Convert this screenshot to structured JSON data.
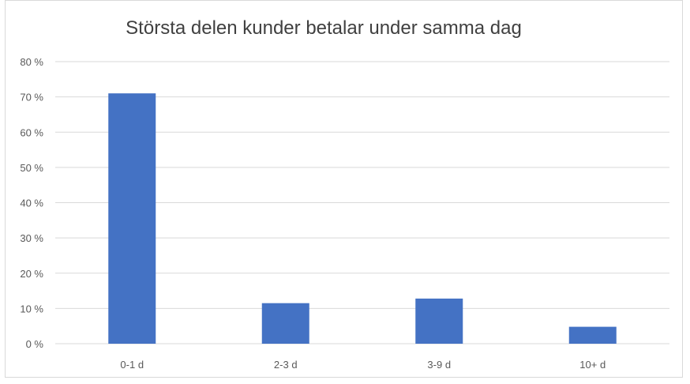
{
  "chart_data": {
    "type": "bar",
    "title": "Största delen kunder betalar under samma dag",
    "categories": [
      "0-1 d",
      "2-3 d",
      "3-9 d",
      "10+ d"
    ],
    "values": [
      71,
      11.5,
      12.8,
      4.8
    ],
    "y_ticks": [
      "0 %",
      "10 %",
      "20 %",
      "30 %",
      "40 %",
      "50 %",
      "60 %",
      "70 %",
      "80 %"
    ],
    "ylim": [
      0,
      80
    ],
    "grid": true,
    "legend": "none",
    "bar_color": "#4472c4",
    "grid_color": "#d9d9d9"
  }
}
